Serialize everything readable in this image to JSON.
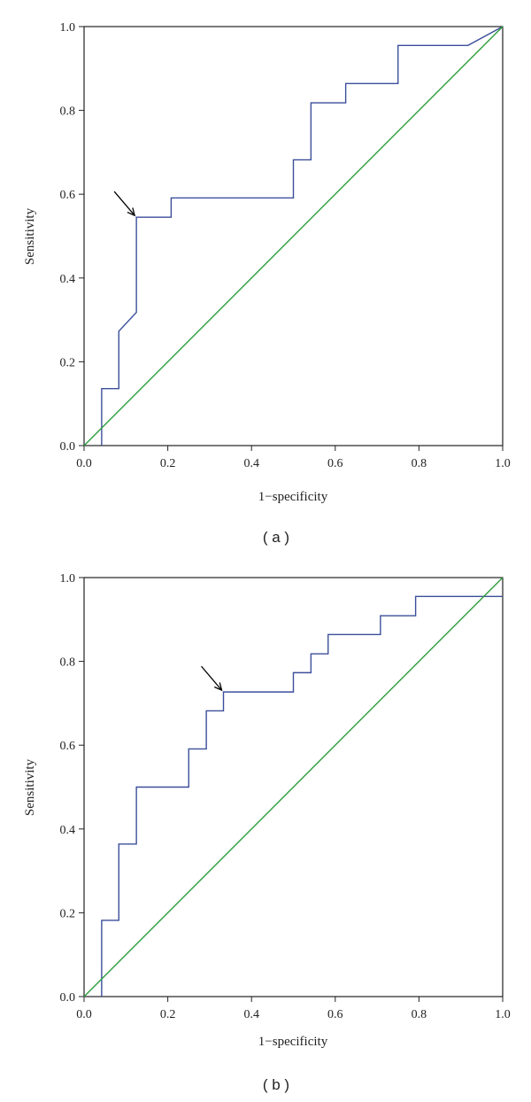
{
  "chart_data": [
    {
      "type": "line",
      "panel_label": "( a )",
      "xlabel": "1−specificity",
      "ylabel": "Sensitivity",
      "xlim": [
        0,
        1
      ],
      "ylim": [
        0,
        1
      ],
      "xticks": [
        "0.0",
        "0.2",
        "0.4",
        "0.6",
        "0.8",
        "1.0"
      ],
      "yticks": [
        "0.0",
        "0.2",
        "0.4",
        "0.6",
        "0.8",
        "1.0"
      ],
      "grid": false,
      "series": [
        {
          "role": "roc",
          "color": "#3b4f9a",
          "x": [
            0.042,
            0.042,
            0.083,
            0.083,
            0.125,
            0.125,
            0.208,
            0.208,
            0.5,
            0.5,
            0.542,
            0.542,
            0.625,
            0.625,
            0.75,
            0.75,
            0.917,
            1.0
          ],
          "y": [
            0.0,
            0.136,
            0.136,
            0.273,
            0.318,
            0.545,
            0.545,
            0.591,
            0.591,
            0.682,
            0.682,
            0.818,
            0.818,
            0.864,
            0.864,
            0.955,
            0.955,
            1.0
          ]
        },
        {
          "role": "reference",
          "color": "#2e9e3e",
          "x": [
            0,
            1
          ],
          "y": [
            0,
            1
          ]
        }
      ],
      "annotation": {
        "type": "arrow",
        "x": 0.125,
        "y": 0.545,
        "color": "#000000"
      }
    },
    {
      "type": "line",
      "panel_label": "( b )",
      "xlabel": "1−specificity",
      "ylabel": "Sensitivity",
      "xlim": [
        0,
        1
      ],
      "ylim": [
        0,
        1
      ],
      "xticks": [
        "0.0",
        "0.2",
        "0.4",
        "0.6",
        "0.8",
        "1.0"
      ],
      "yticks": [
        "0.0",
        "0.2",
        "0.4",
        "0.6",
        "0.8",
        "1.0"
      ],
      "grid": false,
      "series": [
        {
          "role": "roc",
          "color": "#3b4f9a",
          "x": [
            0.042,
            0.042,
            0.083,
            0.083,
            0.125,
            0.125,
            0.25,
            0.25,
            0.292,
            0.292,
            0.333,
            0.333,
            0.5,
            0.5,
            0.542,
            0.542,
            0.583,
            0.583,
            0.708,
            0.708,
            0.792,
            0.792,
            1.0
          ],
          "y": [
            0.0,
            0.182,
            0.182,
            0.364,
            0.364,
            0.5,
            0.5,
            0.591,
            0.591,
            0.682,
            0.682,
            0.727,
            0.727,
            0.773,
            0.773,
            0.818,
            0.818,
            0.864,
            0.864,
            0.909,
            0.909,
            0.955,
            0.955
          ]
        },
        {
          "role": "reference",
          "color": "#2e9e3e",
          "x": [
            0,
            1
          ],
          "y": [
            0,
            1
          ]
        }
      ],
      "annotation": {
        "type": "arrow",
        "x": 0.333,
        "y": 0.727,
        "color": "#000000"
      }
    }
  ]
}
